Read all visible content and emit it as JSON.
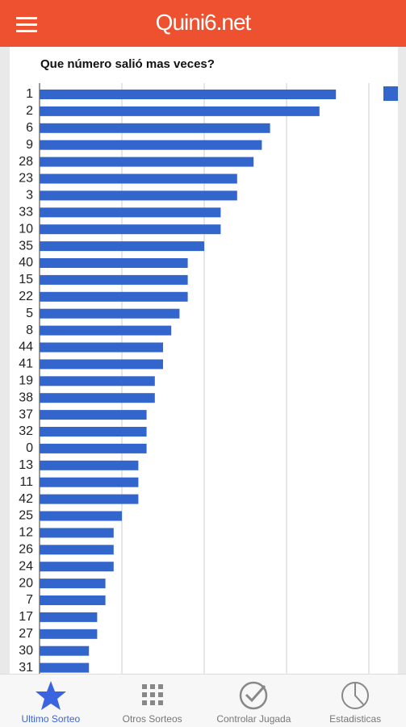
{
  "app": {
    "header_title": "Quini6.net",
    "tabs": [
      "Ultimo Sorteo",
      "Otros Sorteos",
      "Controlar Jugada",
      "Estadisticas"
    ],
    "active_tab": 0
  },
  "chart_data": {
    "type": "hbar",
    "title": "Que número salió mas veces?",
    "categories": [
      "1",
      "2",
      "6",
      "9",
      "28",
      "23",
      "3",
      "33",
      "10",
      "35",
      "40",
      "15",
      "22",
      "5",
      "8",
      "44",
      "41",
      "19",
      "38",
      "37",
      "32",
      "0",
      "13",
      "11",
      "42",
      "25",
      "12",
      "26",
      "24",
      "20",
      "7",
      "17",
      "27",
      "30",
      "31"
    ],
    "values": [
      36,
      34,
      28,
      27,
      26,
      24,
      24,
      22,
      22,
      20,
      18,
      18,
      18,
      17,
      16,
      15,
      15,
      14,
      14,
      13,
      13,
      13,
      12,
      12,
      12,
      10,
      9,
      9,
      9,
      8,
      8,
      7,
      7,
      6,
      6
    ],
    "color": "#3366cc",
    "xlim": [
      0,
      40
    ],
    "xticks": [
      0,
      10,
      20,
      30,
      40
    ],
    "grid": true
  }
}
